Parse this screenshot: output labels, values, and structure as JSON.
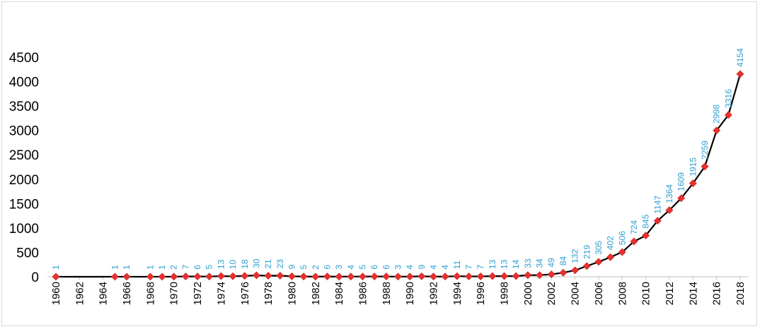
{
  "chart_data": {
    "type": "line",
    "title": "",
    "xlabel": "",
    "ylabel": "",
    "ylim": [
      0,
      4500
    ],
    "yticks": [
      "0",
      "500",
      "1000",
      "1500",
      "2000",
      "2500",
      "3000",
      "3500",
      "4000",
      "4500"
    ],
    "xticks": [
      "1960",
      "1962",
      "1964",
      "1966",
      "1968",
      "1970",
      "1972",
      "1974",
      "1976",
      "1978",
      "1980",
      "1982",
      "1984",
      "1986",
      "1988",
      "1990",
      "1992",
      "1994",
      "1996",
      "1998",
      "2000",
      "2002",
      "2004",
      "2006",
      "2008",
      "2010",
      "2012",
      "2014",
      "2016",
      "2018"
    ],
    "grid": false,
    "legend": "none",
    "line_color": "#000000",
    "marker_color": "#e8312f",
    "label_color": "#2e9fd1",
    "x": [
      1960,
      1961,
      1962,
      1963,
      1964,
      1965,
      1966,
      1967,
      1968,
      1969,
      1970,
      1971,
      1972,
      1973,
      1974,
      1975,
      1976,
      1977,
      1978,
      1979,
      1980,
      1981,
      1982,
      1983,
      1984,
      1985,
      1986,
      1987,
      1988,
      1989,
      1990,
      1991,
      1992,
      1993,
      1994,
      1995,
      1996,
      1997,
      1998,
      1999,
      2000,
      2001,
      2002,
      2003,
      2004,
      2005,
      2006,
      2007,
      2008,
      2009,
      2010,
      2011,
      2012,
      2013,
      2014,
      2015,
      2016,
      2017,
      2018
    ],
    "values": [
      1,
      0,
      0,
      0,
      0,
      1,
      1,
      0,
      1,
      1,
      2,
      7,
      6,
      5,
      13,
      10,
      18,
      30,
      21,
      23,
      9,
      5,
      2,
      6,
      3,
      4,
      5,
      6,
      6,
      3,
      4,
      9,
      4,
      4,
      11,
      7,
      7,
      13,
      13,
      14,
      33,
      34,
      49,
      84,
      132,
      219,
      305,
      402,
      506,
      724,
      845,
      1147,
      1364,
      1609,
      1915,
      2259,
      2998,
      3316,
      4154
    ],
    "markers": [
      true,
      false,
      false,
      false,
      false,
      true,
      true,
      false,
      true,
      true,
      true,
      true,
      true,
      true,
      true,
      true,
      true,
      true,
      true,
      true,
      true,
      true,
      true,
      true,
      true,
      true,
      true,
      true,
      true,
      true,
      true,
      true,
      true,
      true,
      true,
      true,
      true,
      true,
      true,
      true,
      true,
      true,
      true,
      true,
      true,
      true,
      true,
      true,
      true,
      true,
      true,
      true,
      true,
      true,
      true,
      true,
      true,
      true,
      true
    ],
    "labels": [
      "1",
      "",
      "",
      "",
      "",
      "1",
      "1",
      "",
      "1",
      "1",
      "2",
      "7",
      "6",
      "5",
      "13",
      "10",
      "18",
      "30",
      "21",
      "23",
      "9",
      "5",
      "2",
      "6",
      "3",
      "4",
      "5",
      "6",
      "6",
      "3",
      "4",
      "9",
      "4",
      "4",
      "11",
      "7",
      "7",
      "13",
      "13",
      "14",
      "33",
      "34",
      "49",
      "84",
      "132",
      "219",
      "305",
      "402",
      "506",
      "724",
      "845",
      "1147",
      "1364",
      "1609",
      "1915",
      "2259",
      "2998",
      "3316",
      "4154"
    ]
  }
}
